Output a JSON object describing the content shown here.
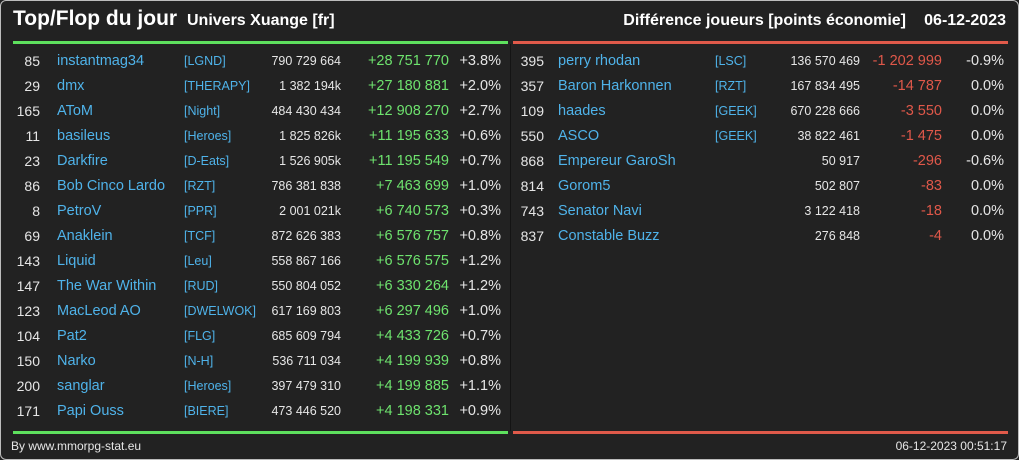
{
  "header": {
    "title": "Top/Flop du jour",
    "universe": "Univers Xuange [fr]",
    "metric": "Différence joueurs [points économie]",
    "date": "06-12-2023"
  },
  "colors": {
    "top_accent": "#5ee05e",
    "flop_accent": "#e05a4a",
    "name_link": "#4fb3ea",
    "background": "#222222"
  },
  "top": [
    {
      "rank": "85",
      "name": "instantmag34",
      "alliance": "[LGND]",
      "points": "790 729 664",
      "diff": "+28 751 770",
      "pct": "+3.8%"
    },
    {
      "rank": "29",
      "name": "dmx",
      "alliance": "[THERAPY]",
      "points": "1 382 194k",
      "diff": "+27 180 881",
      "pct": "+2.0%"
    },
    {
      "rank": "165",
      "name": "AToM",
      "alliance": "[Night]",
      "points": "484 430 434",
      "diff": "+12 908 270",
      "pct": "+2.7%"
    },
    {
      "rank": "11",
      "name": "basileus",
      "alliance": "[Heroes]",
      "points": "1 825 826k",
      "diff": "+11 195 633",
      "pct": "+0.6%"
    },
    {
      "rank": "23",
      "name": "Darkfire",
      "alliance": "[D-Eats]",
      "points": "1 526 905k",
      "diff": "+11 195 549",
      "pct": "+0.7%"
    },
    {
      "rank": "86",
      "name": "Bob Cinco Lardo",
      "alliance": "[RZT]",
      "points": "786 381 838",
      "diff": "+7 463 699",
      "pct": "+1.0%"
    },
    {
      "rank": "8",
      "name": "PetroV",
      "alliance": "[PPR]",
      "points": "2 001 021k",
      "diff": "+6 740 573",
      "pct": "+0.3%"
    },
    {
      "rank": "69",
      "name": "Anaklein",
      "alliance": "[TCF]",
      "points": "872 626 383",
      "diff": "+6 576 757",
      "pct": "+0.8%"
    },
    {
      "rank": "143",
      "name": "Liquid",
      "alliance": "[Leu]",
      "points": "558 867 166",
      "diff": "+6 576 575",
      "pct": "+1.2%"
    },
    {
      "rank": "147",
      "name": "The War Within",
      "alliance": "[RUD]",
      "points": "550 804 052",
      "diff": "+6 330 264",
      "pct": "+1.2%"
    },
    {
      "rank": "123",
      "name": "MacLeod AO",
      "alliance": "[DWELWOK]",
      "points": "617 169 803",
      "diff": "+6 297 496",
      "pct": "+1.0%"
    },
    {
      "rank": "104",
      "name": "Pat2",
      "alliance": "[FLG]",
      "points": "685 609 794",
      "diff": "+4 433 726",
      "pct": "+0.7%"
    },
    {
      "rank": "150",
      "name": "Narko",
      "alliance": "[N-H]",
      "points": "536 711 034",
      "diff": "+4 199 939",
      "pct": "+0.8%"
    },
    {
      "rank": "200",
      "name": "sanglar",
      "alliance": "[Heroes]",
      "points": "397 479 310",
      "diff": "+4 199 885",
      "pct": "+1.1%"
    },
    {
      "rank": "171",
      "name": "Papi Ouss",
      "alliance": "[BIERE]",
      "points": "473 446 520",
      "diff": "+4 198 331",
      "pct": "+0.9%"
    }
  ],
  "flop": [
    {
      "rank": "395",
      "name": "perry rhodan",
      "alliance": "[LSC]",
      "points": "136 570 469",
      "diff": "-1 202 999",
      "pct": "-0.9%"
    },
    {
      "rank": "357",
      "name": "Baron Harkonnen",
      "alliance": "[RZT]",
      "points": "167 834 495",
      "diff": "-14 787",
      "pct": "0.0%"
    },
    {
      "rank": "109",
      "name": "haades",
      "alliance": "[GEEK]",
      "points": "670 228 666",
      "diff": "-3 550",
      "pct": "0.0%"
    },
    {
      "rank": "550",
      "name": "ASCO",
      "alliance": "[GEEK]",
      "points": "38 822 461",
      "diff": "-1 475",
      "pct": "0.0%"
    },
    {
      "rank": "868",
      "name": "Empereur GaroSh",
      "alliance": "",
      "points": "50 917",
      "diff": "-296",
      "pct": "-0.6%"
    },
    {
      "rank": "814",
      "name": "Gorom5",
      "alliance": "",
      "points": "502 807",
      "diff": "-83",
      "pct": "0.0%"
    },
    {
      "rank": "743",
      "name": "Senator Navi",
      "alliance": "",
      "points": "3 122 418",
      "diff": "-18",
      "pct": "0.0%"
    },
    {
      "rank": "837",
      "name": "Constable Buzz",
      "alliance": "",
      "points": "276 848",
      "diff": "-4",
      "pct": "0.0%"
    }
  ],
  "footer": {
    "credit": "By www.mmorpg-stat.eu",
    "timestamp": "06-12-2023 00:51:17"
  }
}
